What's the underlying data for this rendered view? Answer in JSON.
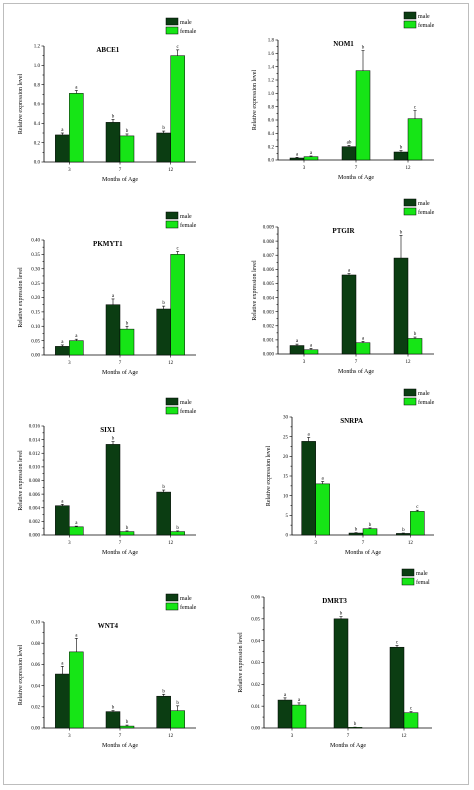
{
  "figure": {
    "colors": {
      "male": "#0b3d12",
      "female": "#16e516"
    }
  },
  "chart_data": [
    {
      "type": "bar",
      "title": "ABCE1",
      "xlabel": "Months of Age",
      "ylabel": "Relative expression level",
      "categories": [
        "3",
        "7",
        "12"
      ],
      "ylim": [
        0,
        1.2
      ],
      "yticks": [
        "0.0",
        "0.2",
        "0.4",
        "0.6",
        "0.8",
        "1.0",
        "1.2"
      ],
      "legend": "top-right",
      "series": [
        {
          "name": "male",
          "values": [
            0.28,
            0.41,
            0.3
          ],
          "errors": [
            0.02,
            0.03,
            0.02
          ],
          "labels": [
            "a",
            "b",
            "b"
          ]
        },
        {
          "name": "female",
          "values": [
            0.71,
            0.27,
            1.1
          ],
          "errors": [
            0.03,
            0.02,
            0.06
          ],
          "labels": [
            "a",
            "b",
            "c"
          ]
        }
      ]
    },
    {
      "type": "bar",
      "title": "NOM1",
      "xlabel": "Months of Age",
      "ylabel": "Relative expression level",
      "categories": [
        "3",
        "7",
        "12"
      ],
      "ylim": [
        0,
        1.8
      ],
      "yticks": [
        "0.0",
        "0.2",
        "0.4",
        "0.6",
        "0.8",
        "1.0",
        "1.2",
        "1.4",
        "1.6",
        "1.8"
      ],
      "legend": "top-right",
      "series": [
        {
          "name": "male",
          "values": [
            0.03,
            0.2,
            0.12
          ],
          "errors": [
            0.01,
            0.02,
            0.02
          ],
          "labels": [
            "a",
            "ab",
            "b"
          ]
        },
        {
          "name": "female",
          "values": [
            0.05,
            1.34,
            0.62
          ],
          "errors": [
            0.01,
            0.3,
            0.12
          ],
          "labels": [
            "a",
            "b",
            "c"
          ]
        }
      ]
    },
    {
      "type": "bar",
      "title": "PKMYT1",
      "xlabel": "Months of Age",
      "ylabel": "Relative expression level",
      "categories": [
        "3",
        "7",
        "12"
      ],
      "ylim": [
        0,
        0.4
      ],
      "yticks": [
        "0.00",
        "0.05",
        "0.10",
        "0.15",
        "0.20",
        "0.25",
        "0.30",
        "0.35",
        "0.40"
      ],
      "legend": "top-right",
      "series": [
        {
          "name": "male",
          "values": [
            0.03,
            0.175,
            0.16
          ],
          "errors": [
            0.005,
            0.02,
            0.01
          ],
          "labels": [
            "a",
            "a",
            "b"
          ]
        },
        {
          "name": "female",
          "values": [
            0.05,
            0.09,
            0.35
          ],
          "errors": [
            0.005,
            0.01,
            0.01
          ],
          "labels": [
            "a",
            "b",
            "c"
          ]
        }
      ]
    },
    {
      "type": "bar",
      "title": "PTGIR",
      "xlabel": "Months of Age",
      "ylabel": "Relative expression level",
      "categories": [
        "3",
        "7",
        "12"
      ],
      "ylim": [
        0,
        0.009
      ],
      "yticks": [
        "0.000",
        "0.001",
        "0.002",
        "0.003",
        "0.004",
        "0.005",
        "0.006",
        "0.007",
        "0.008",
        "0.009"
      ],
      "legend": "top-right",
      "series": [
        {
          "name": "male",
          "values": [
            0.0006,
            0.0056,
            0.0068
          ],
          "errors": [
            0.0001,
            0.0001,
            0.0016
          ],
          "labels": [
            "a",
            "a",
            "b"
          ]
        },
        {
          "name": "female",
          "values": [
            0.0003,
            0.0008,
            0.0011
          ],
          "errors": [
            0.0001,
            0.0001,
            0.0001
          ],
          "labels": [
            "a",
            "a",
            "b"
          ]
        }
      ]
    },
    {
      "type": "bar",
      "title": "SIX1",
      "xlabel": "Months of Age",
      "ylabel": "Relative expression level",
      "categories": [
        "3",
        "7",
        "12"
      ],
      "ylim": [
        0,
        0.016
      ],
      "yticks": [
        "0.000",
        "0.002",
        "0.004",
        "0.006",
        "0.008",
        "0.010",
        "0.012",
        "0.014",
        "0.016"
      ],
      "legend": "top-right",
      "series": [
        {
          "name": "male",
          "values": [
            0.0043,
            0.0133,
            0.0063
          ],
          "errors": [
            0.0002,
            0.0004,
            0.0003
          ],
          "labels": [
            "a",
            "b",
            "b"
          ]
        },
        {
          "name": "female",
          "values": [
            0.0012,
            0.0005,
            0.0005
          ],
          "errors": [
            0.0001,
            0.0001,
            0.0001
          ],
          "labels": [
            "a",
            "b",
            "b"
          ]
        }
      ]
    },
    {
      "type": "bar",
      "title": "SNRPA",
      "xlabel": "Months of Age",
      "ylabel": "Relative expression level",
      "categories": [
        "3",
        "7",
        "12"
      ],
      "ylim": [
        0,
        30
      ],
      "yticks": [
        "0",
        "5",
        "10",
        "15",
        "20",
        "25",
        "30"
      ],
      "legend": "top-right",
      "series": [
        {
          "name": "male",
          "values": [
            23.8,
            0.5,
            0.4
          ],
          "errors": [
            1.0,
            0.1,
            0.1
          ],
          "labels": [
            "a",
            "b",
            "b"
          ]
        },
        {
          "name": "female",
          "values": [
            13.0,
            1.6,
            6.0
          ],
          "errors": [
            0.6,
            0.2,
            0.3
          ],
          "labels": [
            "a",
            "b",
            "c"
          ]
        }
      ]
    },
    {
      "type": "bar",
      "title": "WNT4",
      "xlabel": "Months of Age",
      "ylabel": "Relative expression level",
      "categories": [
        "3",
        "7",
        "12"
      ],
      "ylim": [
        0,
        0.11
      ],
      "yticks": [
        "0.00",
        "0.02",
        "0.04",
        "0.06",
        "0.08",
        "0.10"
      ],
      "legend": "top-right",
      "series": [
        {
          "name": "male",
          "values": [
            0.056,
            0.017,
            0.033
          ],
          "errors": [
            0.008,
            0.001,
            0.002
          ],
          "labels": [
            "a",
            "b",
            "b"
          ]
        },
        {
          "name": "female",
          "values": [
            0.079,
            0.002,
            0.018
          ],
          "errors": [
            0.014,
            0.001,
            0.005
          ],
          "labels": [
            "a",
            "b",
            "b"
          ]
        }
      ]
    },
    {
      "type": "bar",
      "title": "DMRT3",
      "xlabel": "Months of Age",
      "ylabel": "Relative expression level",
      "categories": [
        "3",
        "7",
        "12"
      ],
      "ylim": [
        0,
        0.06
      ],
      "yticks": [
        "0.00",
        "0.01",
        "0.02",
        "0.03",
        "0.04",
        "0.05",
        "0.06"
      ],
      "legend": "top-right",
      "series": [
        {
          "name": "male",
          "values": [
            0.0128,
            0.05,
            0.037
          ],
          "errors": [
            0.001,
            0.001,
            0.0008
          ],
          "labels": [
            "a",
            "b",
            "c"
          ]
        },
        {
          "name": "femal",
          "values": [
            0.0105,
            0.0003,
            0.007
          ],
          "errors": [
            0.001,
            0.0001,
            0.0005
          ],
          "labels": [
            "a",
            "b",
            "c"
          ]
        }
      ]
    }
  ]
}
